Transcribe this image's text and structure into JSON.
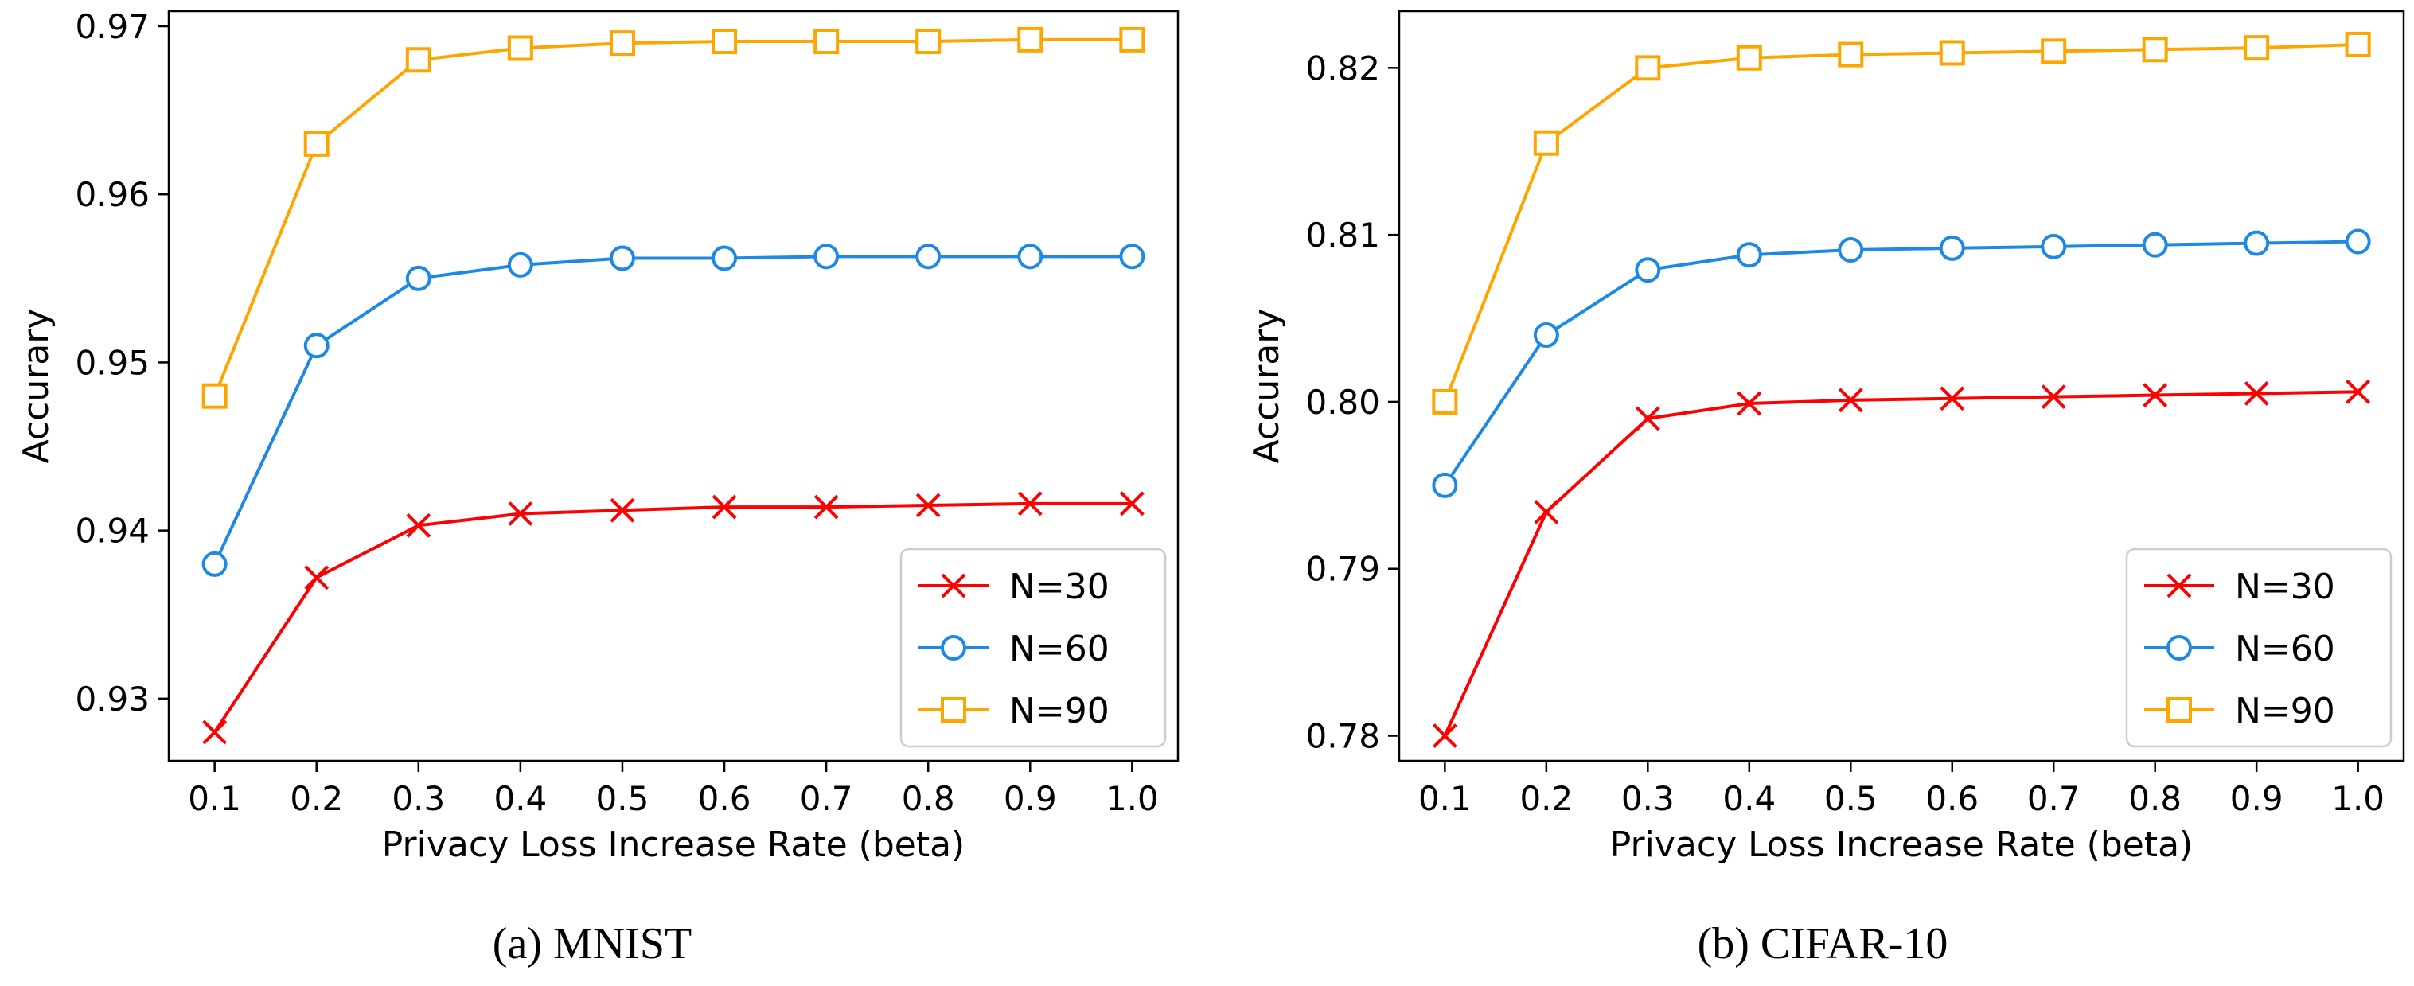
{
  "chart_data": [
    {
      "type": "line",
      "caption": "(a)  MNIST",
      "xlabel": "Privacy Loss Increase Rate (beta)",
      "ylabel": "Accurary",
      "x": [
        0.1,
        0.2,
        0.3,
        0.4,
        0.5,
        0.6,
        0.7,
        0.8,
        0.9,
        1.0
      ],
      "x_tick_labels": [
        "0.1",
        "0.2",
        "0.3",
        "0.4",
        "0.5",
        "0.6",
        "0.7",
        "0.8",
        "0.9",
        "1.0"
      ],
      "xlim": [
        0.055,
        1.045
      ],
      "ylim": [
        0.9263,
        0.9709
      ],
      "y_ticks": [
        0.93,
        0.94,
        0.95,
        0.96,
        0.97
      ],
      "y_tick_labels": [
        "0.93",
        "0.94",
        "0.95",
        "0.96",
        "0.97"
      ],
      "grid": false,
      "legend_position": "lower-right",
      "series": [
        {
          "name": "N=30",
          "color": "#ff0000",
          "marker": "x",
          "values": [
            0.928,
            0.9372,
            0.9403,
            0.941,
            0.9412,
            0.9414,
            0.9414,
            0.9415,
            0.9416,
            0.9416
          ]
        },
        {
          "name": "N=60",
          "color": "#1e88e5",
          "marker": "circle",
          "values": [
            0.938,
            0.951,
            0.955,
            0.9558,
            0.9562,
            0.9562,
            0.9563,
            0.9563,
            0.9563,
            0.9563
          ]
        },
        {
          "name": "N=90",
          "color": "#ffa500",
          "marker": "square",
          "values": [
            0.948,
            0.963,
            0.968,
            0.9687,
            0.969,
            0.9691,
            0.9691,
            0.9691,
            0.9692,
            0.9692
          ]
        }
      ]
    },
    {
      "type": "line",
      "caption": "(b)  CIFAR-10",
      "xlabel": "Privacy Loss Increase Rate (beta)",
      "ylabel": "Accurary",
      "x": [
        0.1,
        0.2,
        0.3,
        0.4,
        0.5,
        0.6,
        0.7,
        0.8,
        0.9,
        1.0
      ],
      "x_tick_labels": [
        "0.1",
        "0.2",
        "0.3",
        "0.4",
        "0.5",
        "0.6",
        "0.7",
        "0.8",
        "0.9",
        "1.0"
      ],
      "xlim": [
        0.055,
        1.045
      ],
      "ylim": [
        0.7785,
        0.8234
      ],
      "y_ticks": [
        0.78,
        0.79,
        0.8,
        0.81,
        0.82
      ],
      "y_tick_labels": [
        "0.78",
        "0.79",
        "0.80",
        "0.81",
        "0.82"
      ],
      "grid": false,
      "legend_position": "lower-right",
      "series": [
        {
          "name": "N=30",
          "color": "#ff0000",
          "marker": "x",
          "values": [
            0.78,
            0.7934,
            0.799,
            0.7999,
            0.8001,
            0.8002,
            0.8003,
            0.8004,
            0.8005,
            0.8006
          ]
        },
        {
          "name": "N=60",
          "color": "#1e88e5",
          "marker": "circle",
          "values": [
            0.795,
            0.804,
            0.8079,
            0.8088,
            0.8091,
            0.8092,
            0.8093,
            0.8094,
            0.8095,
            0.8096
          ]
        },
        {
          "name": "N=90",
          "color": "#ffa500",
          "marker": "square",
          "values": [
            0.8,
            0.8155,
            0.82,
            0.8206,
            0.8208,
            0.8209,
            0.821,
            0.8211,
            0.8212,
            0.8214
          ]
        }
      ]
    }
  ]
}
